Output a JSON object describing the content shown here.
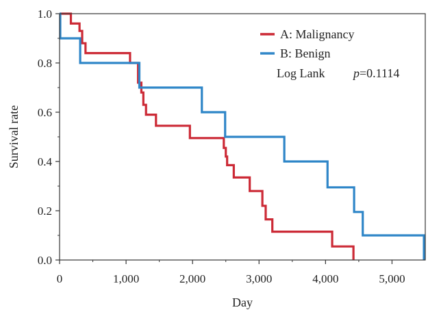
{
  "chart_data": {
    "type": "line",
    "step": true,
    "xlabel": "Day",
    "ylabel": "Survival rate",
    "xlim": [
      0,
      5500
    ],
    "ylim": [
      0,
      1.0
    ],
    "x_ticks": [
      0,
      1000,
      2000,
      3000,
      4000,
      5000
    ],
    "x_tick_labels": [
      "0",
      "1,000",
      "2,000",
      "3,000",
      "4,000",
      "5,000"
    ],
    "y_ticks": [
      0,
      0.2,
      0.4,
      0.6,
      0.8,
      1.0
    ],
    "y_tick_labels": [
      "0.0",
      "0.2",
      "0.4",
      "0.6",
      "0.8",
      "1.0"
    ],
    "legend_position": "top-right",
    "series": [
      {
        "name": "A: Malignancy",
        "color": "#cc2a36",
        "points": [
          [
            0,
            1.0
          ],
          [
            170,
            0.96
          ],
          [
            300,
            0.93
          ],
          [
            340,
            0.88
          ],
          [
            390,
            0.84
          ],
          [
            1060,
            0.8
          ],
          [
            1180,
            0.72
          ],
          [
            1230,
            0.68
          ],
          [
            1260,
            0.63
          ],
          [
            1300,
            0.59
          ],
          [
            1450,
            0.545
          ],
          [
            1960,
            0.495
          ],
          [
            2470,
            0.455
          ],
          [
            2500,
            0.42
          ],
          [
            2520,
            0.385
          ],
          [
            2620,
            0.335
          ],
          [
            2860,
            0.28
          ],
          [
            3050,
            0.22
          ],
          [
            3100,
            0.165
          ],
          [
            3200,
            0.115
          ],
          [
            4100,
            0.055
          ],
          [
            4420,
            0.0
          ]
        ]
      },
      {
        "name": "B: Benign",
        "color": "#2f86c8",
        "points": [
          [
            0,
            1.0
          ],
          [
            10,
            0.9
          ],
          [
            310,
            0.8
          ],
          [
            1200,
            0.7
          ],
          [
            2140,
            0.6
          ],
          [
            2490,
            0.5
          ],
          [
            3380,
            0.4
          ],
          [
            4030,
            0.295
          ],
          [
            4430,
            0.195
          ],
          [
            4560,
            0.1
          ],
          [
            5480,
            0.0
          ]
        ]
      }
    ],
    "annotation": {
      "text_label": "Log Lank",
      "text_p": "p",
      "text_value": "=0.1114"
    }
  }
}
